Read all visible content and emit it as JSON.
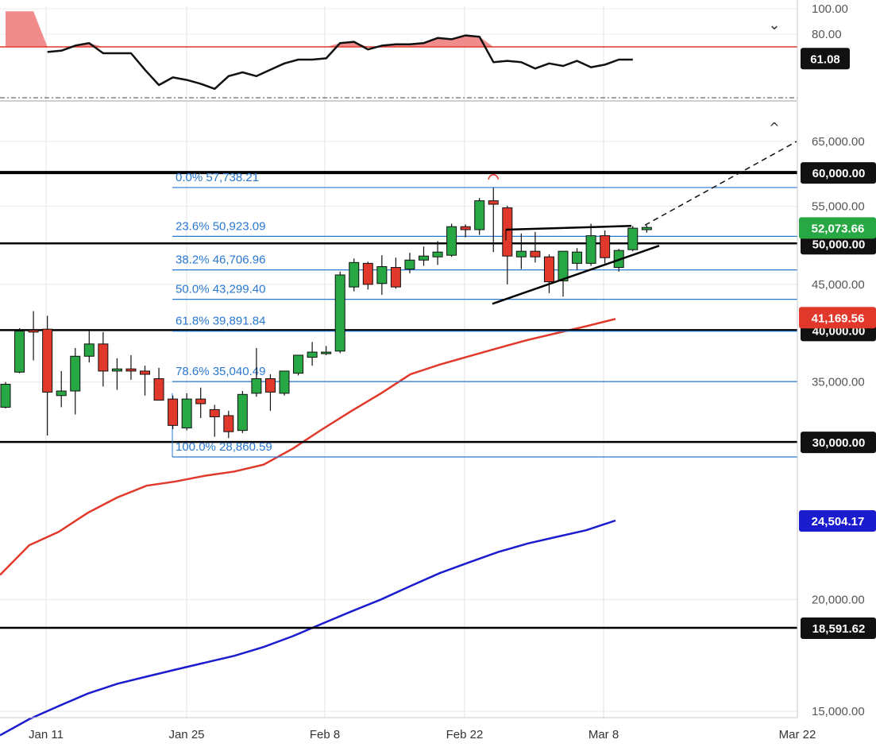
{
  "chart_data": [
    {
      "type": "line",
      "panel": "oscillator",
      "y_tick_labels": [
        "100.00",
        "80.00"
      ],
      "current_value_label": "61.08",
      "current_value": 61.08,
      "overbought_level": 70,
      "oversold_level": 30,
      "ylim": [
        26,
        102
      ],
      "values": [
        98,
        98,
        98,
        66,
        67,
        71,
        73,
        65,
        65,
        65,
        52,
        40,
        46,
        44,
        41,
        37,
        47,
        50,
        47,
        52,
        57,
        60,
        60,
        61,
        73,
        74,
        68,
        71,
        72,
        72,
        73,
        77,
        76,
        79,
        78,
        58,
        59,
        58,
        53,
        57,
        55,
        59,
        54,
        56,
        60,
        60
      ]
    },
    {
      "type": "candlestick",
      "panel": "price",
      "x_tick_labels": [
        "Jan 11",
        "Jan 25",
        "Feb 8",
        "Feb 22",
        "Mar 8",
        "Mar 22"
      ],
      "y_tick_labels": [
        "65,000.00",
        "55,000.00",
        "45,000.00",
        "35,000.00",
        "20,000.00",
        "15,000.00"
      ],
      "ylim": [
        14000,
        67500
      ],
      "grid": true,
      "candles": [
        {
          "o": 32800,
          "h": 35000,
          "l": 32700,
          "c": 34800
        },
        {
          "o": 35900,
          "h": 40200,
          "l": 35800,
          "c": 39900
        },
        {
          "o": 40000,
          "h": 42000,
          "l": 37000,
          "c": 39800
        },
        {
          "o": 40100,
          "h": 41500,
          "l": 30500,
          "c": 34100
        },
        {
          "o": 33800,
          "h": 36000,
          "l": 32800,
          "c": 34200
        },
        {
          "o": 34200,
          "h": 38200,
          "l": 32200,
          "c": 37400
        },
        {
          "o": 37400,
          "h": 40100,
          "l": 36800,
          "c": 38600
        },
        {
          "o": 38600,
          "h": 39800,
          "l": 34600,
          "c": 36000
        },
        {
          "o": 36000,
          "h": 37200,
          "l": 34300,
          "c": 36200
        },
        {
          "o": 36200,
          "h": 37500,
          "l": 35200,
          "c": 36000
        },
        {
          "o": 36000,
          "h": 36500,
          "l": 33800,
          "c": 35700
        },
        {
          "o": 35300,
          "h": 36300,
          "l": 33900,
          "c": 33400
        },
        {
          "o": 33500,
          "h": 33800,
          "l": 31000,
          "c": 31300
        },
        {
          "o": 31100,
          "h": 34000,
          "l": 30900,
          "c": 33500
        },
        {
          "o": 33500,
          "h": 34500,
          "l": 31900,
          "c": 33100
        },
        {
          "o": 32600,
          "h": 33000,
          "l": 30400,
          "c": 32000
        },
        {
          "o": 32100,
          "h": 32500,
          "l": 30300,
          "c": 30800
        },
        {
          "o": 30900,
          "h": 34200,
          "l": 30700,
          "c": 33900
        },
        {
          "o": 34000,
          "h": 38200,
          "l": 33700,
          "c": 35300
        },
        {
          "o": 35300,
          "h": 35700,
          "l": 32500,
          "c": 34100
        },
        {
          "o": 34000,
          "h": 36000,
          "l": 33800,
          "c": 36000
        },
        {
          "o": 35800,
          "h": 37500,
          "l": 35600,
          "c": 37500
        },
        {
          "o": 37300,
          "h": 38800,
          "l": 36500,
          "c": 37800
        },
        {
          "o": 37700,
          "h": 38400,
          "l": 37500,
          "c": 37800
        },
        {
          "o": 37900,
          "h": 46500,
          "l": 37700,
          "c": 46100
        },
        {
          "o": 44700,
          "h": 48100,
          "l": 44200,
          "c": 47600
        },
        {
          "o": 47500,
          "h": 47700,
          "l": 44400,
          "c": 45000
        },
        {
          "o": 45100,
          "h": 48500,
          "l": 43800,
          "c": 47100
        },
        {
          "o": 47000,
          "h": 48200,
          "l": 44500,
          "c": 44700
        },
        {
          "o": 46800,
          "h": 48800,
          "l": 46300,
          "c": 47900
        },
        {
          "o": 47900,
          "h": 49600,
          "l": 47200,
          "c": 48400
        },
        {
          "o": 48300,
          "h": 50300,
          "l": 47300,
          "c": 48900
        },
        {
          "o": 48500,
          "h": 52600,
          "l": 48300,
          "c": 52200
        },
        {
          "o": 52200,
          "h": 52500,
          "l": 50800,
          "c": 51800
        },
        {
          "o": 51800,
          "h": 56200,
          "l": 51100,
          "c": 55800
        },
        {
          "o": 55800,
          "h": 57700,
          "l": 48900,
          "c": 55300
        },
        {
          "o": 54800,
          "h": 55100,
          "l": 45000,
          "c": 48400
        },
        {
          "o": 48300,
          "h": 51300,
          "l": 46800,
          "c": 49000
        },
        {
          "o": 49000,
          "h": 51500,
          "l": 47600,
          "c": 48300
        },
        {
          "o": 48300,
          "h": 48600,
          "l": 44000,
          "c": 45300
        },
        {
          "o": 45400,
          "h": 49000,
          "l": 43600,
          "c": 49000
        },
        {
          "o": 47500,
          "h": 49400,
          "l": 46700,
          "c": 48900
        },
        {
          "o": 47500,
          "h": 52600,
          "l": 47200,
          "c": 51000
        },
        {
          "o": 51000,
          "h": 51700,
          "l": 47500,
          "c": 48200
        },
        {
          "o": 47000,
          "h": 49300,
          "l": 46500,
          "c": 49100
        },
        {
          "o": 49200,
          "h": 52300,
          "l": 49000,
          "c": 52000
        },
        {
          "o": 51800,
          "h": 52400,
          "l": 51400,
          "c": 52100
        }
      ],
      "horizontal_levels": [
        60000,
        50000,
        40000,
        30000,
        18591.62
      ],
      "level_labels": [
        "60,000.00",
        "50,000.00",
        "40,000.00",
        "30,000.00",
        "18,591.62"
      ],
      "fibonacci": [
        {
          "label": "0.0% 57,738.21",
          "value": 57738.21
        },
        {
          "label": "23.6% 50,923.09",
          "value": 50923.09
        },
        {
          "label": "38.2% 46,706.96",
          "value": 46706.96
        },
        {
          "label": "50.0% 43,299.40",
          "value": 43299.4
        },
        {
          "label": "61.8% 39,891.84",
          "value": 39891.84
        },
        {
          "label": "78.6% 35,040.49",
          "value": 35040.49
        },
        {
          "label": "100.0% 28,860.59",
          "value": 28860.59
        }
      ],
      "moving_averages": [
        {
          "color": "#e0392b",
          "label": "41,169.56",
          "last": 41169.56,
          "values": [
            21300,
            23000,
            23800,
            25000,
            26000,
            26800,
            27100,
            27500,
            27800,
            28300,
            29500,
            31000,
            32500,
            34000,
            35700,
            36600,
            37400,
            38200,
            39000,
            39700,
            40400,
            41169.56
          ]
        },
        {
          "color": "#1c1ccf",
          "label": "24,504.17",
          "last": 24504.17,
          "values": [
            14100,
            14700,
            15200,
            15700,
            16100,
            16400,
            16700,
            17000,
            17300,
            17700,
            18200,
            18800,
            19400,
            20000,
            20700,
            21400,
            22000,
            22600,
            23100,
            23500,
            23900,
            24504.17
          ]
        }
      ],
      "current_price_label": "52,073.66",
      "current_price": 52073.66,
      "projection": {
        "from": 52200,
        "to": 65000
      },
      "colors": {
        "up": "#27a844",
        "down": "#e0392b",
        "fib": "#2a78d0",
        "level": "#000000"
      }
    }
  ]
}
